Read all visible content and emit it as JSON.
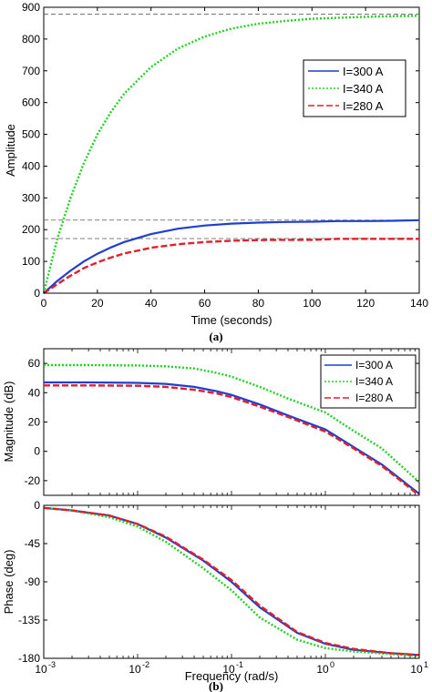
{
  "captions": {
    "a": "(a)",
    "b": "(b)"
  },
  "legend_entries": [
    "I=300 A",
    "I=340 A",
    "I=280 A"
  ],
  "colors": {
    "i300": "#1f3fd1",
    "i340": "#22d122",
    "i280": "#e0202a",
    "ref": "#555555"
  },
  "chart_data": [
    {
      "id": "step",
      "type": "line",
      "title": "",
      "xlabel": "Time (seconds)",
      "ylabel": "Amplitude",
      "xlim": [
        0,
        140
      ],
      "ylim": [
        0,
        900
      ],
      "xticks": [
        0,
        20,
        40,
        60,
        80,
        100,
        120,
        140
      ],
      "yticks": [
        0,
        100,
        200,
        300,
        400,
        500,
        600,
        700,
        800,
        900
      ],
      "grid": false,
      "legend_position": "top-right",
      "reference_lines": [
        878,
        230,
        172
      ],
      "series": [
        {
          "name": "I=300 A",
          "style": "solid",
          "color": "#1f3fd1",
          "x": [
            0,
            5,
            10,
            15,
            20,
            25,
            30,
            40,
            50,
            60,
            70,
            80,
            90,
            100,
            110,
            120,
            130,
            140
          ],
          "y": [
            0,
            38,
            71,
            100,
            124,
            144,
            161,
            186,
            203,
            213,
            219,
            222,
            224,
            225,
            227,
            227,
            228,
            230
          ]
        },
        {
          "name": "I=340 A",
          "style": "dotted",
          "color": "#22d122",
          "x": [
            0,
            5,
            10,
            15,
            20,
            25,
            30,
            40,
            50,
            60,
            70,
            80,
            90,
            100,
            110,
            120,
            130,
            140
          ],
          "y": [
            0,
            170,
            300,
            410,
            500,
            570,
            628,
            712,
            770,
            808,
            833,
            848,
            857,
            864,
            867,
            870,
            872,
            873
          ]
        },
        {
          "name": "I=280 A",
          "style": "dashed",
          "color": "#e0202a",
          "x": [
            0,
            5,
            10,
            15,
            20,
            25,
            30,
            40,
            50,
            60,
            70,
            80,
            90,
            100,
            110,
            120,
            130,
            140
          ],
          "y": [
            0,
            28,
            55,
            79,
            97,
            112,
            125,
            143,
            154,
            161,
            165,
            167,
            168,
            168,
            171,
            171,
            171,
            171
          ]
        }
      ]
    },
    {
      "id": "magnitude",
      "type": "line",
      "title": "",
      "xlabel": "",
      "ylabel": "Magnitude (dB)",
      "xscale": "log",
      "xlim": [
        0.001,
        10
      ],
      "ylim": [
        -30,
        70
      ],
      "yticks": [
        -20,
        0,
        20,
        40,
        60
      ],
      "grid": false,
      "legend_position": "top-right",
      "series": [
        {
          "name": "I=300 A",
          "style": "solid",
          "color": "#1f3fd1",
          "x": [
            0.001,
            0.003,
            0.01,
            0.02,
            0.04,
            0.07,
            0.1,
            0.2,
            0.4,
            1,
            2,
            4,
            10
          ],
          "y": [
            47,
            47,
            46.7,
            46,
            44,
            41,
            38.5,
            32,
            24.5,
            15,
            3,
            -9,
            -29
          ]
        },
        {
          "name": "I=340 A",
          "style": "dotted",
          "color": "#22d122",
          "x": [
            0.001,
            0.003,
            0.01,
            0.02,
            0.04,
            0.07,
            0.1,
            0.2,
            0.4,
            1,
            2,
            4,
            10
          ],
          "y": [
            58.8,
            58.8,
            58.6,
            58,
            56.5,
            53.5,
            51,
            44,
            36,
            26.5,
            14,
            2,
            -21
          ]
        },
        {
          "name": "I=280 A",
          "style": "dashed",
          "color": "#e0202a",
          "x": [
            0.001,
            0.003,
            0.01,
            0.02,
            0.04,
            0.07,
            0.1,
            0.2,
            0.4,
            1,
            2,
            4,
            10
          ],
          "y": [
            45,
            45,
            44.7,
            44,
            42,
            39.5,
            37,
            30.5,
            23.5,
            13.5,
            2,
            -10,
            -30
          ]
        }
      ]
    },
    {
      "id": "phase",
      "type": "line",
      "title": "",
      "xlabel": "Frequency (rad/s)",
      "ylabel": "Phase (deg)",
      "xscale": "log",
      "xlim": [
        0.001,
        10
      ],
      "ylim": [
        -180,
        0
      ],
      "xticks": [
        0.001,
        0.01,
        0.1,
        1,
        10
      ],
      "xticklabels_base": "10",
      "xticklabels_exp": [
        "-3",
        "-2",
        "-1",
        "0",
        "1"
      ],
      "yticks": [
        0,
        -45,
        -90,
        -135,
        -180
      ],
      "grid": false,
      "series": [
        {
          "name": "I=300 A",
          "style": "solid",
          "color": "#1f3fd1",
          "x": [
            0.001,
            0.002,
            0.005,
            0.01,
            0.02,
            0.05,
            0.1,
            0.2,
            0.5,
            1,
            2,
            5,
            10
          ],
          "y": [
            -3,
            -6,
            -12,
            -22,
            -38,
            -65,
            -90,
            -120,
            -150,
            -163,
            -170,
            -174,
            -176
          ]
        },
        {
          "name": "I=340 A",
          "style": "dotted",
          "color": "#22d122",
          "x": [
            0.001,
            0.002,
            0.005,
            0.01,
            0.02,
            0.05,
            0.1,
            0.2,
            0.5,
            1,
            2,
            5,
            10
          ],
          "y": [
            -3,
            -6,
            -14,
            -25,
            -43,
            -74,
            -100,
            -132,
            -158,
            -168,
            -172,
            -175,
            -177
          ]
        },
        {
          "name": "I=280 A",
          "style": "dashed",
          "color": "#e0202a",
          "x": [
            0.001,
            0.002,
            0.005,
            0.01,
            0.02,
            0.05,
            0.1,
            0.2,
            0.5,
            1,
            2,
            5,
            10
          ],
          "y": [
            -3,
            -6,
            -12,
            -22,
            -37,
            -64,
            -88,
            -118,
            -149,
            -162,
            -169,
            -174,
            -176
          ]
        }
      ]
    }
  ]
}
